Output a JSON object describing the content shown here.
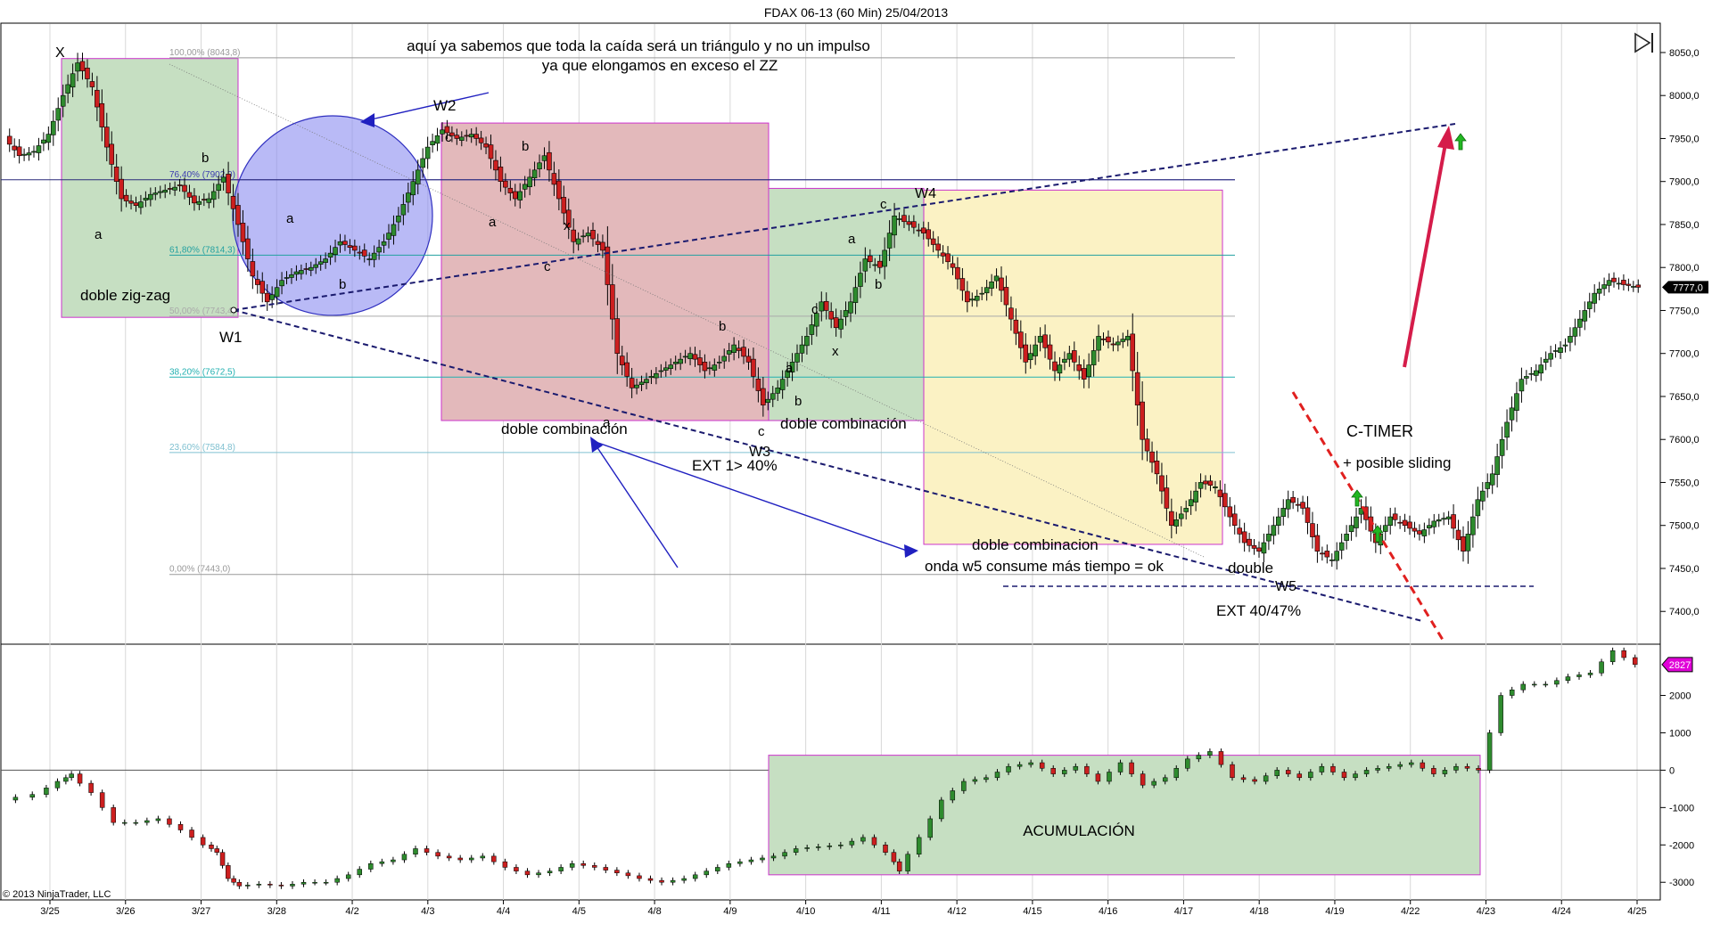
{
  "window": {
    "title": "FDAX 06-13 (60 Min)  25/04/2013",
    "copyright": "© 2013 NinjaTrader, LLC",
    "end_icon": "skip-to-end-icon"
  },
  "chart_data": [
    {
      "type": "candlestick",
      "title": "FDAX 06-13 (60 Min)  25/04/2013",
      "ylim": [
        7365,
        8080
      ],
      "yticks": [
        7400,
        7450,
        7500,
        7550,
        7600,
        7650,
        7700,
        7750,
        7800,
        7850,
        7900,
        7950,
        8000,
        8050
      ],
      "ytick_labels": [
        "7400,0",
        "7450,0",
        "7500,0",
        "7550,0",
        "7600,0",
        "7650,0",
        "7700,0",
        "7750,0",
        "7800,0",
        "7850,0",
        "7900,0",
        "7950,0",
        "8000,0",
        "8050,0"
      ],
      "x_labels": [
        "3/25",
        "3/26",
        "3/27",
        "3/28",
        "4/2",
        "4/3",
        "4/4",
        "4/5",
        "4/8",
        "4/9",
        "4/10",
        "4/11",
        "4/12",
        "4/15",
        "4/16",
        "4/17",
        "4/18",
        "4/19",
        "4/22",
        "4/23",
        "4/24",
        "4/25"
      ],
      "last_price": 7777,
      "last_price_label": "7777,0",
      "close_path": [
        [
          0,
          7950
        ],
        [
          1,
          7930
        ],
        [
          2,
          7935
        ],
        [
          3,
          7955
        ],
        [
          4,
          8000
        ],
        [
          5,
          8038
        ],
        [
          6,
          8010
        ],
        [
          7,
          7940
        ],
        [
          8,
          7880
        ],
        [
          9,
          7872
        ],
        [
          10,
          7885
        ],
        [
          11,
          7890
        ],
        [
          12,
          7895
        ],
        [
          13,
          7875
        ],
        [
          14,
          7880
        ],
        [
          15,
          7905
        ],
        [
          16,
          7850
        ],
        [
          17,
          7790
        ],
        [
          18,
          7760
        ],
        [
          19,
          7785
        ],
        [
          20,
          7795
        ],
        [
          21,
          7800
        ],
        [
          22,
          7810
        ],
        [
          23,
          7830
        ],
        [
          24,
          7820
        ],
        [
          25,
          7810
        ],
        [
          26,
          7830
        ],
        [
          27,
          7860
        ],
        [
          28,
          7900
        ],
        [
          29,
          7940
        ],
        [
          30,
          7960
        ],
        [
          31,
          7950
        ],
        [
          32,
          7955
        ],
        [
          33,
          7940
        ],
        [
          34,
          7900
        ],
        [
          35,
          7880
        ],
        [
          36,
          7905
        ],
        [
          37,
          7930
        ],
        [
          38,
          7880
        ],
        [
          39,
          7830
        ],
        [
          40,
          7840
        ],
        [
          41,
          7820
        ],
        [
          42,
          7700
        ],
        [
          43,
          7660
        ],
        [
          44,
          7670
        ],
        [
          45,
          7680
        ],
        [
          46,
          7690
        ],
        [
          47,
          7700
        ],
        [
          48,
          7680
        ],
        [
          49,
          7690
        ],
        [
          50,
          7710
        ],
        [
          51,
          7690
        ],
        [
          52,
          7640
        ],
        [
          53,
          7660
        ],
        [
          54,
          7690
        ],
        [
          55,
          7720
        ],
        [
          56,
          7760
        ],
        [
          57,
          7730
        ],
        [
          58,
          7760
        ],
        [
          59,
          7810
        ],
        [
          60,
          7800
        ],
        [
          61,
          7860
        ],
        [
          62,
          7850
        ],
        [
          63,
          7840
        ],
        [
          64,
          7820
        ],
        [
          65,
          7800
        ],
        [
          66,
          7760
        ],
        [
          67,
          7770
        ],
        [
          68,
          7790
        ],
        [
          69,
          7740
        ],
        [
          70,
          7690
        ],
        [
          71,
          7720
        ],
        [
          72,
          7680
        ],
        [
          73,
          7700
        ],
        [
          74,
          7670
        ],
        [
          75,
          7720
        ],
        [
          76,
          7710
        ],
        [
          77,
          7720
        ],
        [
          78,
          7600
        ],
        [
          79,
          7560
        ],
        [
          80,
          7500
        ],
        [
          81,
          7520
        ],
        [
          82,
          7550
        ],
        [
          83,
          7545
        ],
        [
          84,
          7510
        ],
        [
          85,
          7480
        ],
        [
          86,
          7470
        ],
        [
          87,
          7500
        ],
        [
          88,
          7530
        ],
        [
          89,
          7520
        ],
        [
          90,
          7470
        ],
        [
          91,
          7460
        ],
        [
          92,
          7490
        ],
        [
          93,
          7520
        ],
        [
          94,
          7480
        ],
        [
          95,
          7510
        ],
        [
          96,
          7500
        ],
        [
          97,
          7490
        ],
        [
          98,
          7505
        ],
        [
          99,
          7510
        ],
        [
          100,
          7470
        ],
        [
          101,
          7530
        ],
        [
          102,
          7560
        ],
        [
          103,
          7620
        ],
        [
          104,
          7670
        ],
        [
          105,
          7680
        ],
        [
          106,
          7700
        ],
        [
          107,
          7710
        ],
        [
          108,
          7740
        ],
        [
          109,
          7770
        ],
        [
          110,
          7785
        ],
        [
          111,
          7780
        ],
        [
          112,
          7777
        ]
      ],
      "fibonacci_levels": [
        {
          "label": "100,00% (8043,8)",
          "value": 8043.8
        },
        {
          "label": "76,40% (7902,0)",
          "value": 7902.0
        },
        {
          "label": "61,80% (7814,3)",
          "value": 7814.3
        },
        {
          "label": "50,00% (7743,4)",
          "value": 7743.4
        },
        {
          "label": "38,20% (7672,5)",
          "value": 7672.5
        },
        {
          "label": "23,60% (7584,8)",
          "value": 7584.8
        },
        {
          "label": "0,00% (7443,0)",
          "value": 7443.0
        }
      ],
      "annotations": {
        "wave_labels": [
          "X",
          "W1",
          "W2",
          "W3",
          "W4",
          "W5"
        ],
        "sub_labels": [
          "a",
          "b",
          "c",
          "x"
        ],
        "pattern_labels": [
          "doble zig-zag",
          "doble combinación",
          "doble combinación",
          "doble combinacion",
          "onda w5 consume más tiempo = ok",
          "double"
        ],
        "note_triangle": [
          "aquí ya sabemos que toda la caída será un triángulo y no un impulso",
          "ya que elongamos en exceso el ZZ"
        ],
        "ext_labels": [
          "EXT 1> 40%",
          "EXT 40/47%"
        ],
        "ctimer": "C-TIMER",
        "sliding": "+ posible sliding"
      },
      "colors": {
        "up_candle": "#2e8b2e",
        "down_candle": "#cc1f1f",
        "box_green": "#c6dfc2",
        "box_red": "#e3b9bb",
        "box_yellow": "#fbf2c4",
        "box_border": "#cc33cc",
        "circle": "#8a8cf0",
        "trend_line": "#1a1a6e",
        "ctimer_line": "#e0201f",
        "arrow_up": "#22b722"
      }
    },
    {
      "type": "line",
      "title": "",
      "ylim": [
        -3400,
        3300
      ],
      "yticks": [
        -3000,
        -2000,
        -1000,
        0,
        1000,
        2000
      ],
      "ytick_labels": [
        "-3000",
        "-2000",
        "-1000",
        "0",
        "1000",
        "2000"
      ],
      "last_value": 2827,
      "last_value_label": "2827",
      "box_label": "ACUMULACIÓN",
      "close_path": [
        [
          0,
          -800
        ],
        [
          3,
          -650
        ],
        [
          5,
          -300
        ],
        [
          6,
          -100
        ],
        [
          8,
          -600
        ],
        [
          10,
          -1400
        ],
        [
          12,
          -1400
        ],
        [
          14,
          -1300
        ],
        [
          16,
          -1600
        ],
        [
          18,
          -2000
        ],
        [
          19,
          -2200
        ],
        [
          20,
          -2900
        ],
        [
          21,
          -3100
        ],
        [
          23,
          -3050
        ],
        [
          25,
          -3100
        ],
        [
          27,
          -3000
        ],
        [
          29,
          -3000
        ],
        [
          31,
          -2800
        ],
        [
          33,
          -2500
        ],
        [
          35,
          -2400
        ],
        [
          37,
          -2100
        ],
        [
          39,
          -2300
        ],
        [
          41,
          -2400
        ],
        [
          43,
          -2300
        ],
        [
          45,
          -2600
        ],
        [
          47,
          -2800
        ],
        [
          49,
          -2700
        ],
        [
          51,
          -2500
        ],
        [
          53,
          -2600
        ],
        [
          55,
          -2750
        ],
        [
          57,
          -2900
        ],
        [
          59,
          -3000
        ],
        [
          61,
          -2900
        ],
        [
          63,
          -2700
        ],
        [
          65,
          -2500
        ],
        [
          67,
          -2400
        ],
        [
          69,
          -2300
        ],
        [
          71,
          -2100
        ],
        [
          73,
          -2050
        ],
        [
          75,
          -2000
        ],
        [
          77,
          -1800
        ],
        [
          79,
          -2200
        ],
        [
          80,
          -2700
        ],
        [
          82,
          -1800
        ],
        [
          84,
          -800
        ],
        [
          86,
          -300
        ],
        [
          88,
          -200
        ],
        [
          90,
          100
        ],
        [
          92,
          200
        ],
        [
          94,
          -100
        ],
        [
          96,
          100
        ],
        [
          98,
          -300
        ],
        [
          100,
          200
        ],
        [
          102,
          -400
        ],
        [
          104,
          -200
        ],
        [
          106,
          300
        ],
        [
          108,
          500
        ],
        [
          110,
          -200
        ],
        [
          112,
          -300
        ],
        [
          114,
          0
        ],
        [
          116,
          -200
        ],
        [
          118,
          100
        ],
        [
          120,
          -200
        ],
        [
          122,
          0
        ],
        [
          124,
          100
        ],
        [
          126,
          200
        ],
        [
          128,
          -100
        ],
        [
          130,
          100
        ],
        [
          132,
          0
        ],
        [
          134,
          2000
        ],
        [
          136,
          2300
        ],
        [
          138,
          2300
        ],
        [
          140,
          2500
        ],
        [
          142,
          2600
        ],
        [
          144,
          3200
        ],
        [
          146,
          2827
        ]
      ]
    }
  ]
}
